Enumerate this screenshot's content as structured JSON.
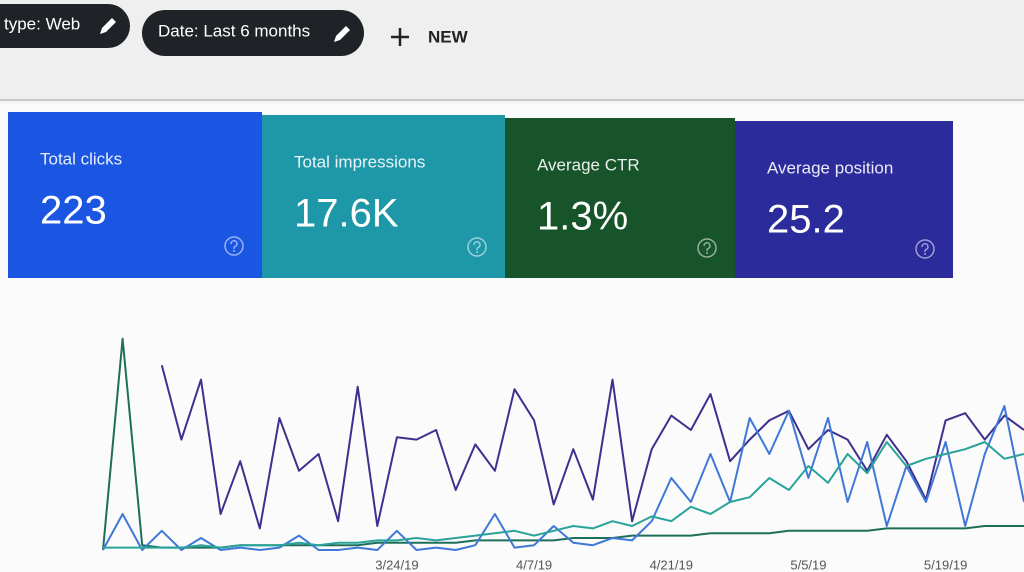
{
  "filters": [
    {
      "label": "type: Web"
    },
    {
      "label": "Date: Last 6 months"
    }
  ],
  "new_button": {
    "label": "NEW"
  },
  "cards": [
    {
      "label": "Total clicks",
      "value": "223",
      "color": "#1b56e3"
    },
    {
      "label": "Total impressions",
      "value": "17.6K",
      "color": "#1e97a8"
    },
    {
      "label": "Average CTR",
      "value": "1.3%",
      "color": "#17542a"
    },
    {
      "label": "Average position",
      "value": "25.2",
      "color": "#2c2b9c"
    }
  ],
  "chart_data": {
    "type": "line",
    "categories": [
      null,
      null,
      null,
      null,
      null,
      null,
      null,
      null,
      null,
      null,
      null,
      null,
      null,
      null,
      null,
      "3/24/19",
      null,
      null,
      null,
      null,
      null,
      null,
      "4/7/19",
      null,
      null,
      null,
      null,
      null,
      null,
      "4/21/19",
      null,
      null,
      null,
      null,
      null,
      null,
      "5/5/19",
      null,
      null,
      null,
      null,
      null,
      null,
      "5/19/19",
      null,
      null,
      null,
      null
    ],
    "ylim": [
      0,
      100
    ],
    "series": [
      {
        "color": "#3f2f8f",
        "values": [
          null,
          null,
          null,
          77,
          46,
          71,
          15,
          37,
          9,
          55,
          33,
          40,
          12,
          68,
          10,
          47,
          46,
          50,
          25,
          44,
          33,
          67,
          54,
          19,
          42,
          21,
          71,
          12,
          42,
          56,
          50,
          65,
          37,
          46,
          54,
          58,
          42,
          50,
          46,
          33,
          48,
          37,
          21,
          54,
          57,
          46,
          56,
          50
        ]
      },
      {
        "color": "#1d6f5a",
        "values": [
          0,
          88,
          2,
          1,
          1,
          1,
          1,
          2,
          2,
          2,
          2,
          2,
          2,
          2,
          3,
          3,
          3,
          3,
          3,
          4,
          4,
          4,
          4,
          4,
          5,
          5,
          5,
          6,
          6,
          6,
          6,
          7,
          7,
          7,
          7,
          8,
          8,
          8,
          8,
          8,
          9,
          9,
          9,
          9,
          9,
          10,
          10,
          10
        ]
      },
      {
        "color": "#3f78d8",
        "values": [
          0,
          15,
          0,
          8,
          0,
          5,
          0,
          1,
          0,
          1,
          6,
          0,
          0,
          1,
          0,
          8,
          0,
          1,
          0,
          2,
          15,
          1,
          2,
          10,
          3,
          2,
          5,
          4,
          12,
          30,
          20,
          40,
          20,
          55,
          40,
          58,
          30,
          55,
          20,
          45,
          10,
          35,
          20,
          45,
          10,
          40,
          60,
          20
        ]
      },
      {
        "color": "#2aa39a",
        "values": [
          1,
          1,
          1,
          1,
          1,
          2,
          1,
          2,
          2,
          2,
          3,
          2,
          3,
          3,
          4,
          4,
          5,
          4,
          5,
          6,
          7,
          8,
          6,
          8,
          10,
          9,
          12,
          10,
          14,
          12,
          18,
          15,
          20,
          22,
          30,
          25,
          35,
          28,
          40,
          32,
          45,
          35,
          38,
          40,
          42,
          45,
          38,
          40
        ]
      }
    ]
  }
}
